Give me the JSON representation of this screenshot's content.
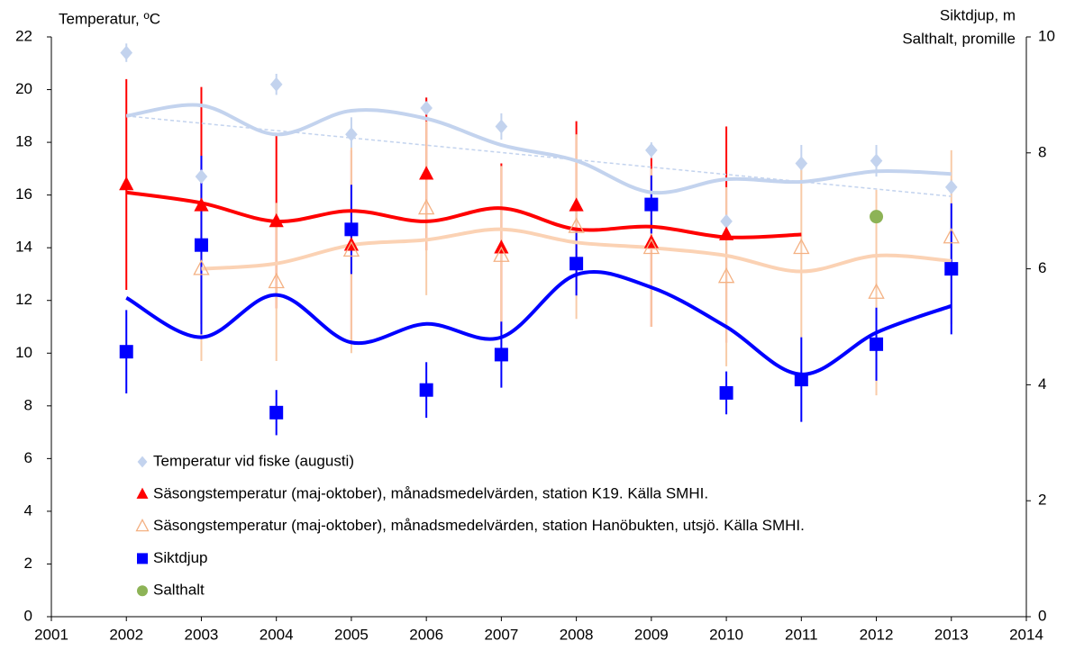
{
  "chart_data": {
    "type": "scatter",
    "ylabel": "Temperatur,  ºC",
    "y2label": [
      "Siktdjup, m",
      "Salthalt, promille"
    ],
    "xlim": [
      2001,
      2014
    ],
    "xticks": [
      2001,
      2002,
      2003,
      2004,
      2005,
      2006,
      2007,
      2008,
      2009,
      2010,
      2011,
      2012,
      2013,
      2014
    ],
    "ylim": [
      0,
      22
    ],
    "yticks": [
      0,
      2,
      4,
      6,
      8,
      10,
      12,
      14,
      16,
      18,
      20,
      22
    ],
    "y2lim": [
      0,
      10
    ],
    "y2ticks": [
      0,
      2,
      4,
      6,
      8,
      10
    ],
    "legend": "lower left",
    "series": [
      {
        "name": "Temperatur vid fiske (augusti)",
        "color": "#c3d3ee",
        "marker": "diamond",
        "x": [
          2002,
          2003,
          2004,
          2005,
          2006,
          2007,
          2009,
          2010,
          2011,
          2012,
          2013
        ],
        "values": [
          21.4,
          16.7,
          20.2,
          18.3,
          19.3,
          18.6,
          17.7,
          15.0,
          17.2,
          17.3,
          16.3
        ],
        "errors": [
          0.35,
          0.45,
          0.4,
          0.65,
          0.4,
          0.5,
          0.3,
          0.4,
          0.7,
          0.6,
          0.3
        ],
        "smooth": {
          "x": [
            2002,
            2003,
            2004,
            2005,
            2006,
            2007,
            2008,
            2009,
            2010,
            2011,
            2012,
            2013
          ],
          "values": [
            19.0,
            19.4,
            18.3,
            19.2,
            18.9,
            17.9,
            17.3,
            16.1,
            16.6,
            16.5,
            16.9,
            16.8
          ]
        },
        "trendline": {
          "x": [
            2002,
            2013
          ],
          "values": [
            19.0,
            15.95
          ]
        }
      },
      {
        "name": "Säsongstemperatur (maj-oktober), månadsmedelvärden, station K19. Källa SMHI.",
        "color": "#ff0000",
        "marker": "triangle",
        "x": [
          2002,
          2003,
          2004,
          2005,
          2006,
          2007,
          2008,
          2009,
          2010
        ],
        "values": [
          16.4,
          15.6,
          15.0,
          14.1,
          16.8,
          14.0,
          15.6,
          14.2,
          14.5
        ],
        "errors": [
          4.0,
          4.5,
          3.3,
          3.6,
          2.9,
          3.2,
          3.2,
          3.2,
          4.1
        ],
        "smooth": {
          "x": [
            2002,
            2003,
            2004,
            2005,
            2006,
            2007,
            2008,
            2009,
            2010,
            2011
          ],
          "values": [
            16.1,
            15.7,
            15.0,
            15.4,
            15.0,
            15.5,
            14.7,
            14.8,
            14.4,
            14.5
          ]
        }
      },
      {
        "name": "Säsongstemperatur (maj-oktober), månadsmedelvärden, station Hanöbukten, utsjö. Källa SMHI.",
        "color": "#f4b183",
        "marker": "triangle-open",
        "x": [
          2003,
          2004,
          2005,
          2006,
          2007,
          2008,
          2009,
          2010,
          2011,
          2012,
          2013
        ],
        "values": [
          13.2,
          12.7,
          13.9,
          15.5,
          13.7,
          14.8,
          14.0,
          12.9,
          14.0,
          12.3,
          14.4
        ],
        "errors": [
          3.5,
          3.0,
          3.9,
          3.3,
          3.4,
          3.5,
          3.0,
          3.4,
          3.4,
          3.9,
          3.3
        ],
        "smooth": {
          "x": [
            2003,
            2004,
            2005,
            2006,
            2007,
            2008,
            2009,
            2010,
            2011,
            2012,
            2013
          ],
          "values": [
            13.2,
            13.4,
            14.1,
            14.3,
            14.7,
            14.2,
            14.0,
            13.7,
            13.1,
            13.7,
            13.5
          ]
        }
      },
      {
        "name": "Siktdjup",
        "color": "#0000ff",
        "marker": "square",
        "axis": "y2",
        "x": [
          2002,
          2003,
          2004,
          2005,
          2006,
          2007,
          2008,
          2009,
          2010,
          2011,
          2012,
          2013
        ],
        "values": [
          4.57,
          6.41,
          3.52,
          6.68,
          3.91,
          4.52,
          6.09,
          7.11,
          3.86,
          4.09,
          4.7,
          6.0
        ],
        "errors": [
          0.72,
          1.54,
          0.39,
          0.77,
          0.48,
          0.57,
          0.55,
          0.5,
          0.37,
          0.73,
          0.63,
          1.13
        ],
        "smooth": {
          "x": [
            2002,
            2003,
            2004,
            2005,
            2006,
            2007,
            2008,
            2009,
            2010,
            2011,
            2012,
            2013
          ],
          "values": [
            5.5,
            4.82,
            5.55,
            4.73,
            5.05,
            4.82,
            5.9,
            5.68,
            5.0,
            4.18,
            4.9,
            5.36
          ]
        }
      },
      {
        "name": "Salthalt",
        "color": "#8db356",
        "marker": "circle",
        "axis": "y2",
        "x": [
          2012
        ],
        "values": [
          6.9
        ]
      }
    ]
  }
}
